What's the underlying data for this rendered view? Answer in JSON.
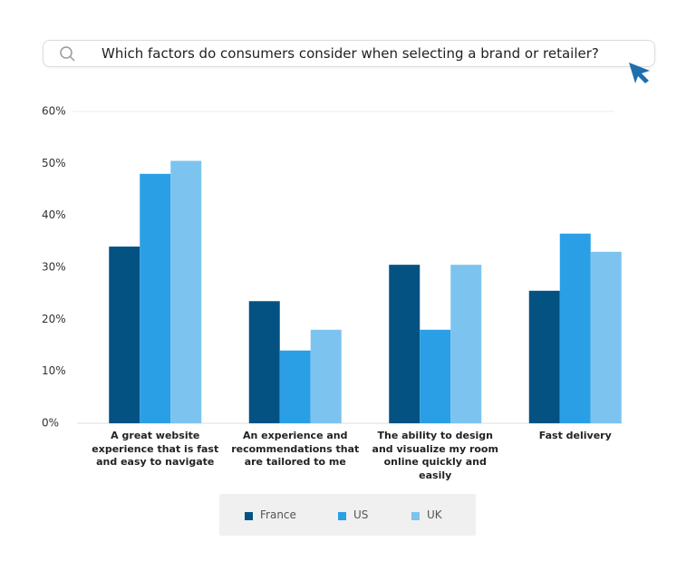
{
  "search_query": "Which factors do consumers consider when selecting a brand or retailer?",
  "chart_data": {
    "type": "bar",
    "categories": [
      "A great website experience that is fast and easy to navigate",
      "An experience and recommendations that are tailored to me",
      "The ability to design and visualize my room online quickly and easily",
      "Fast delivery"
    ],
    "series": [
      {
        "name": "France",
        "color": "#045282",
        "values": [
          34,
          23.5,
          30.5,
          25.5
        ]
      },
      {
        "name": "US",
        "color": "#2a9fe6",
        "values": [
          48,
          14,
          18,
          36.5
        ]
      },
      {
        "name": "UK",
        "color": "#7cc4ef",
        "values": [
          50.5,
          18,
          30.5,
          33
        ]
      }
    ],
    "ylim": [
      0,
      60
    ],
    "yticks": [
      {
        "value": 0,
        "label": "0%"
      },
      {
        "value": 10,
        "label": "10%"
      },
      {
        "value": 20,
        "label": "20%"
      },
      {
        "value": 30,
        "label": "30%"
      },
      {
        "value": 40,
        "label": "40%"
      },
      {
        "value": 50,
        "label": "50%"
      },
      {
        "value": 60,
        "label": "60%"
      }
    ]
  }
}
